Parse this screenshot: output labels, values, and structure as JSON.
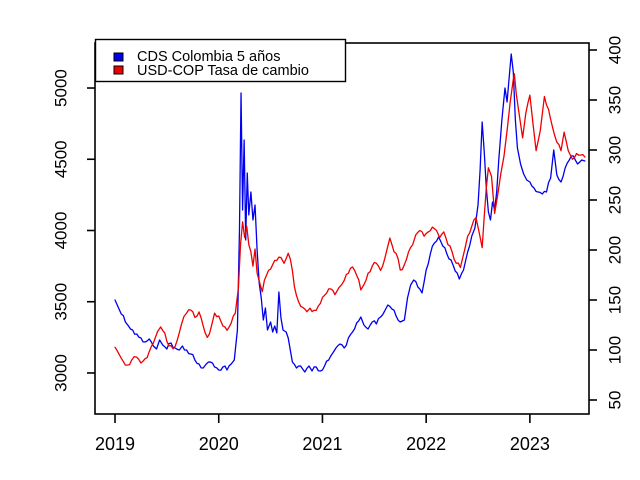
{
  "chart_data": {
    "type": "line",
    "title": "",
    "grid": false,
    "legend": {
      "position": "top-left-inside",
      "entries": [
        "CDS Colombia 5 años",
        "USD-COP Tasa de cambio"
      ]
    },
    "x_axis": {
      "label": "",
      "ticks": [
        "2019",
        "2020",
        "2021",
        "2022",
        "2023"
      ],
      "tick_values": [
        2019,
        2020,
        2021,
        2022,
        2023
      ],
      "range": [
        2018.807,
        2023.57
      ]
    },
    "left_axis": {
      "label": "",
      "ticks": [
        "3000",
        "3500",
        "4000",
        "4500",
        "5000"
      ],
      "tick_values": [
        3000,
        3500,
        4000,
        4500,
        5000
      ],
      "range": [
        2712,
        5316
      ]
    },
    "right_axis": {
      "label": "",
      "ticks": [
        "50",
        "100",
        "150",
        "200",
        "250",
        "300",
        "350",
        "400"
      ],
      "tick_values": [
        50,
        100,
        150,
        200,
        250,
        300,
        350,
        400
      ],
      "range": [
        36,
        407
      ]
    },
    "series": [
      {
        "name": "CDS Colombia 5 años",
        "axis": "right",
        "color": "#0000EE",
        "points": [
          [
            2019.0,
            150
          ],
          [
            2019.03,
            143
          ],
          [
            2019.06,
            136
          ],
          [
            2019.1,
            128
          ],
          [
            2019.13,
            124
          ],
          [
            2019.17,
            120
          ],
          [
            2019.21,
            116
          ],
          [
            2019.25,
            112
          ],
          [
            2019.29,
            108
          ],
          [
            2019.33,
            111
          ],
          [
            2019.37,
            104
          ],
          [
            2019.4,
            101
          ],
          [
            2019.43,
            110
          ],
          [
            2019.46,
            105
          ],
          [
            2019.5,
            101
          ],
          [
            2019.54,
            107
          ],
          [
            2019.58,
            102
          ],
          [
            2019.62,
            100
          ],
          [
            2019.65,
            104
          ],
          [
            2019.69,
            100
          ],
          [
            2019.73,
            96
          ],
          [
            2019.77,
            90
          ],
          [
            2019.81,
            86
          ],
          [
            2019.85,
            82
          ],
          [
            2019.88,
            86
          ],
          [
            2019.92,
            88
          ],
          [
            2019.96,
            83
          ],
          [
            2020.0,
            80
          ],
          [
            2020.04,
            83
          ],
          [
            2020.08,
            80
          ],
          [
            2020.12,
            86
          ],
          [
            2020.15,
            90
          ],
          [
            2020.18,
            120
          ],
          [
            2020.2,
            220
          ],
          [
            2020.215,
            357
          ],
          [
            2020.23,
            240
          ],
          [
            2020.245,
            310
          ],
          [
            2020.26,
            210
          ],
          [
            2020.275,
            277
          ],
          [
            2020.29,
            235
          ],
          [
            2020.31,
            258
          ],
          [
            2020.33,
            230
          ],
          [
            2020.35,
            245
          ],
          [
            2020.37,
            200
          ],
          [
            2020.39,
            167
          ],
          [
            2020.41,
            152
          ],
          [
            2020.43,
            130
          ],
          [
            2020.45,
            142
          ],
          [
            2020.47,
            120
          ],
          [
            2020.5,
            128
          ],
          [
            2020.52,
            118
          ],
          [
            2020.54,
            124
          ],
          [
            2020.56,
            117
          ],
          [
            2020.58,
            158
          ],
          [
            2020.6,
            132
          ],
          [
            2020.62,
            120
          ],
          [
            2020.65,
            118
          ],
          [
            2020.67,
            112
          ],
          [
            2020.69,
            100
          ],
          [
            2020.71,
            88
          ],
          [
            2020.75,
            82
          ],
          [
            2020.79,
            84
          ],
          [
            2020.83,
            78
          ],
          [
            2020.87,
            84
          ],
          [
            2020.9,
            79
          ],
          [
            2020.94,
            83
          ],
          [
            2020.98,
            79
          ],
          [
            2021.02,
            84
          ],
          [
            2021.06,
            90
          ],
          [
            2021.1,
            97
          ],
          [
            2021.13,
            102
          ],
          [
            2021.17,
            106
          ],
          [
            2021.21,
            102
          ],
          [
            2021.25,
            112
          ],
          [
            2021.29,
            118
          ],
          [
            2021.33,
            127
          ],
          [
            2021.37,
            133
          ],
          [
            2021.4,
            125
          ],
          [
            2021.44,
            121
          ],
          [
            2021.48,
            128
          ],
          [
            2021.52,
            126
          ],
          [
            2021.56,
            133
          ],
          [
            2021.6,
            139
          ],
          [
            2021.63,
            145
          ],
          [
            2021.67,
            141
          ],
          [
            2021.71,
            134
          ],
          [
            2021.75,
            128
          ],
          [
            2021.79,
            130
          ],
          [
            2021.82,
            152
          ],
          [
            2021.85,
            165
          ],
          [
            2021.88,
            170
          ],
          [
            2021.92,
            163
          ],
          [
            2021.96,
            157
          ],
          [
            2022.0,
            180
          ],
          [
            2022.04,
            196
          ],
          [
            2022.08,
            207
          ],
          [
            2022.12,
            213
          ],
          [
            2022.16,
            204
          ],
          [
            2022.2,
            196
          ],
          [
            2022.24,
            190
          ],
          [
            2022.28,
            179
          ],
          [
            2022.32,
            171
          ],
          [
            2022.36,
            180
          ],
          [
            2022.4,
            198
          ],
          [
            2022.44,
            214
          ],
          [
            2022.47,
            222
          ],
          [
            2022.5,
            245
          ],
          [
            2022.52,
            280
          ],
          [
            2022.54,
            328
          ],
          [
            2022.56,
            298
          ],
          [
            2022.58,
            262
          ],
          [
            2022.6,
            238
          ],
          [
            2022.62,
            230
          ],
          [
            2022.64,
            248
          ],
          [
            2022.66,
            240
          ],
          [
            2022.68,
            258
          ],
          [
            2022.7,
            290
          ],
          [
            2022.73,
            330
          ],
          [
            2022.76,
            362
          ],
          [
            2022.78,
            348
          ],
          [
            2022.8,
            372
          ],
          [
            2022.82,
            396
          ],
          [
            2022.84,
            378
          ],
          [
            2022.86,
            330
          ],
          [
            2022.88,
            302
          ],
          [
            2022.91,
            286
          ],
          [
            2022.94,
            276
          ],
          [
            2022.97,
            270
          ],
          [
            2023.0,
            268
          ],
          [
            2023.04,
            262
          ],
          [
            2023.08,
            258
          ],
          [
            2023.12,
            256
          ],
          [
            2023.16,
            258
          ],
          [
            2023.2,
            272
          ],
          [
            2023.23,
            300
          ],
          [
            2023.26,
            275
          ],
          [
            2023.3,
            268
          ],
          [
            2023.34,
            282
          ],
          [
            2023.38,
            290
          ],
          [
            2023.42,
            294
          ],
          [
            2023.46,
            286
          ],
          [
            2023.5,
            290
          ],
          [
            2023.53,
            289
          ]
        ]
      },
      {
        "name": "USD-COP Tasa de cambio",
        "axis": "left",
        "color": "#EE0000",
        "points": [
          [
            2019.0,
            3180
          ],
          [
            2019.04,
            3130
          ],
          [
            2019.08,
            3080
          ],
          [
            2019.12,
            3056
          ],
          [
            2019.16,
            3090
          ],
          [
            2019.21,
            3110
          ],
          [
            2019.25,
            3070
          ],
          [
            2019.29,
            3100
          ],
          [
            2019.33,
            3150
          ],
          [
            2019.37,
            3210
          ],
          [
            2019.41,
            3290
          ],
          [
            2019.44,
            3323
          ],
          [
            2019.48,
            3280
          ],
          [
            2019.52,
            3190
          ],
          [
            2019.56,
            3170
          ],
          [
            2019.6,
            3230
          ],
          [
            2019.64,
            3340
          ],
          [
            2019.69,
            3420
          ],
          [
            2019.73,
            3442
          ],
          [
            2019.77,
            3390
          ],
          [
            2019.81,
            3428
          ],
          [
            2019.85,
            3330
          ],
          [
            2019.89,
            3250
          ],
          [
            2019.93,
            3330
          ],
          [
            2019.96,
            3420
          ],
          [
            2020.0,
            3400
          ],
          [
            2020.04,
            3330
          ],
          [
            2020.08,
            3300
          ],
          [
            2020.12,
            3350
          ],
          [
            2020.16,
            3420
          ],
          [
            2020.19,
            3600
          ],
          [
            2020.21,
            3900
          ],
          [
            2020.23,
            4060
          ],
          [
            2020.25,
            3950
          ],
          [
            2020.27,
            4030
          ],
          [
            2020.29,
            3900
          ],
          [
            2020.31,
            3850
          ],
          [
            2020.33,
            3750
          ],
          [
            2020.35,
            3870
          ],
          [
            2020.37,
            3700
          ],
          [
            2020.4,
            3620
          ],
          [
            2020.42,
            3570
          ],
          [
            2020.44,
            3650
          ],
          [
            2020.48,
            3720
          ],
          [
            2020.52,
            3760
          ],
          [
            2020.56,
            3790
          ],
          [
            2020.6,
            3810
          ],
          [
            2020.63,
            3770
          ],
          [
            2020.67,
            3840
          ],
          [
            2020.69,
            3800
          ],
          [
            2020.71,
            3720
          ],
          [
            2020.73,
            3604
          ],
          [
            2020.77,
            3500
          ],
          [
            2020.81,
            3460
          ],
          [
            2020.85,
            3430
          ],
          [
            2020.88,
            3455
          ],
          [
            2020.92,
            3440
          ],
          [
            2020.96,
            3470
          ],
          [
            2021.0,
            3530
          ],
          [
            2021.04,
            3560
          ],
          [
            2021.08,
            3590
          ],
          [
            2021.12,
            3550
          ],
          [
            2021.16,
            3600
          ],
          [
            2021.21,
            3650
          ],
          [
            2021.25,
            3700
          ],
          [
            2021.29,
            3744
          ],
          [
            2021.31,
            3720
          ],
          [
            2021.35,
            3653
          ],
          [
            2021.37,
            3583
          ],
          [
            2021.4,
            3620
          ],
          [
            2021.44,
            3700
          ],
          [
            2021.48,
            3750
          ],
          [
            2021.52,
            3770
          ],
          [
            2021.56,
            3720
          ],
          [
            2021.6,
            3800
          ],
          [
            2021.62,
            3860
          ],
          [
            2021.65,
            3947
          ],
          [
            2021.67,
            3900
          ],
          [
            2021.69,
            3850
          ],
          [
            2021.73,
            3800
          ],
          [
            2021.75,
            3723
          ],
          [
            2021.79,
            3760
          ],
          [
            2021.83,
            3850
          ],
          [
            2021.87,
            3900
          ],
          [
            2021.9,
            3970
          ],
          [
            2021.94,
            4000
          ],
          [
            2021.98,
            3960
          ],
          [
            2022.02,
            3990
          ],
          [
            2022.06,
            4024
          ],
          [
            2022.1,
            4000
          ],
          [
            2022.13,
            3950
          ],
          [
            2022.17,
            3990
          ],
          [
            2022.21,
            3900
          ],
          [
            2022.25,
            3850
          ],
          [
            2022.29,
            3770
          ],
          [
            2022.33,
            3740
          ],
          [
            2022.37,
            3860
          ],
          [
            2022.4,
            3960
          ],
          [
            2022.44,
            4030
          ],
          [
            2022.48,
            4090
          ],
          [
            2022.51,
            3990
          ],
          [
            2022.54,
            3880
          ],
          [
            2022.56,
            4100
          ],
          [
            2022.58,
            4300
          ],
          [
            2022.6,
            4440
          ],
          [
            2022.63,
            4380
          ],
          [
            2022.66,
            4120
          ],
          [
            2022.69,
            4250
          ],
          [
            2022.72,
            4400
          ],
          [
            2022.75,
            4520
          ],
          [
            2022.78,
            4700
          ],
          [
            2022.81,
            4900
          ],
          [
            2022.84,
            5060
          ],
          [
            2022.85,
            5100
          ],
          [
            2022.87,
            4950
          ],
          [
            2022.9,
            4800
          ],
          [
            2022.93,
            4650
          ],
          [
            2022.96,
            4820
          ],
          [
            2023.0,
            4950
          ],
          [
            2023.03,
            4750
          ],
          [
            2023.06,
            4560
          ],
          [
            2023.1,
            4700
          ],
          [
            2023.14,
            4940
          ],
          [
            2023.18,
            4850
          ],
          [
            2023.22,
            4720
          ],
          [
            2023.26,
            4620
          ],
          [
            2023.3,
            4560
          ],
          [
            2023.33,
            4690
          ],
          [
            2023.37,
            4560
          ],
          [
            2023.41,
            4500
          ],
          [
            2023.45,
            4540
          ],
          [
            2023.49,
            4530
          ],
          [
            2023.53,
            4516
          ]
        ]
      }
    ]
  }
}
